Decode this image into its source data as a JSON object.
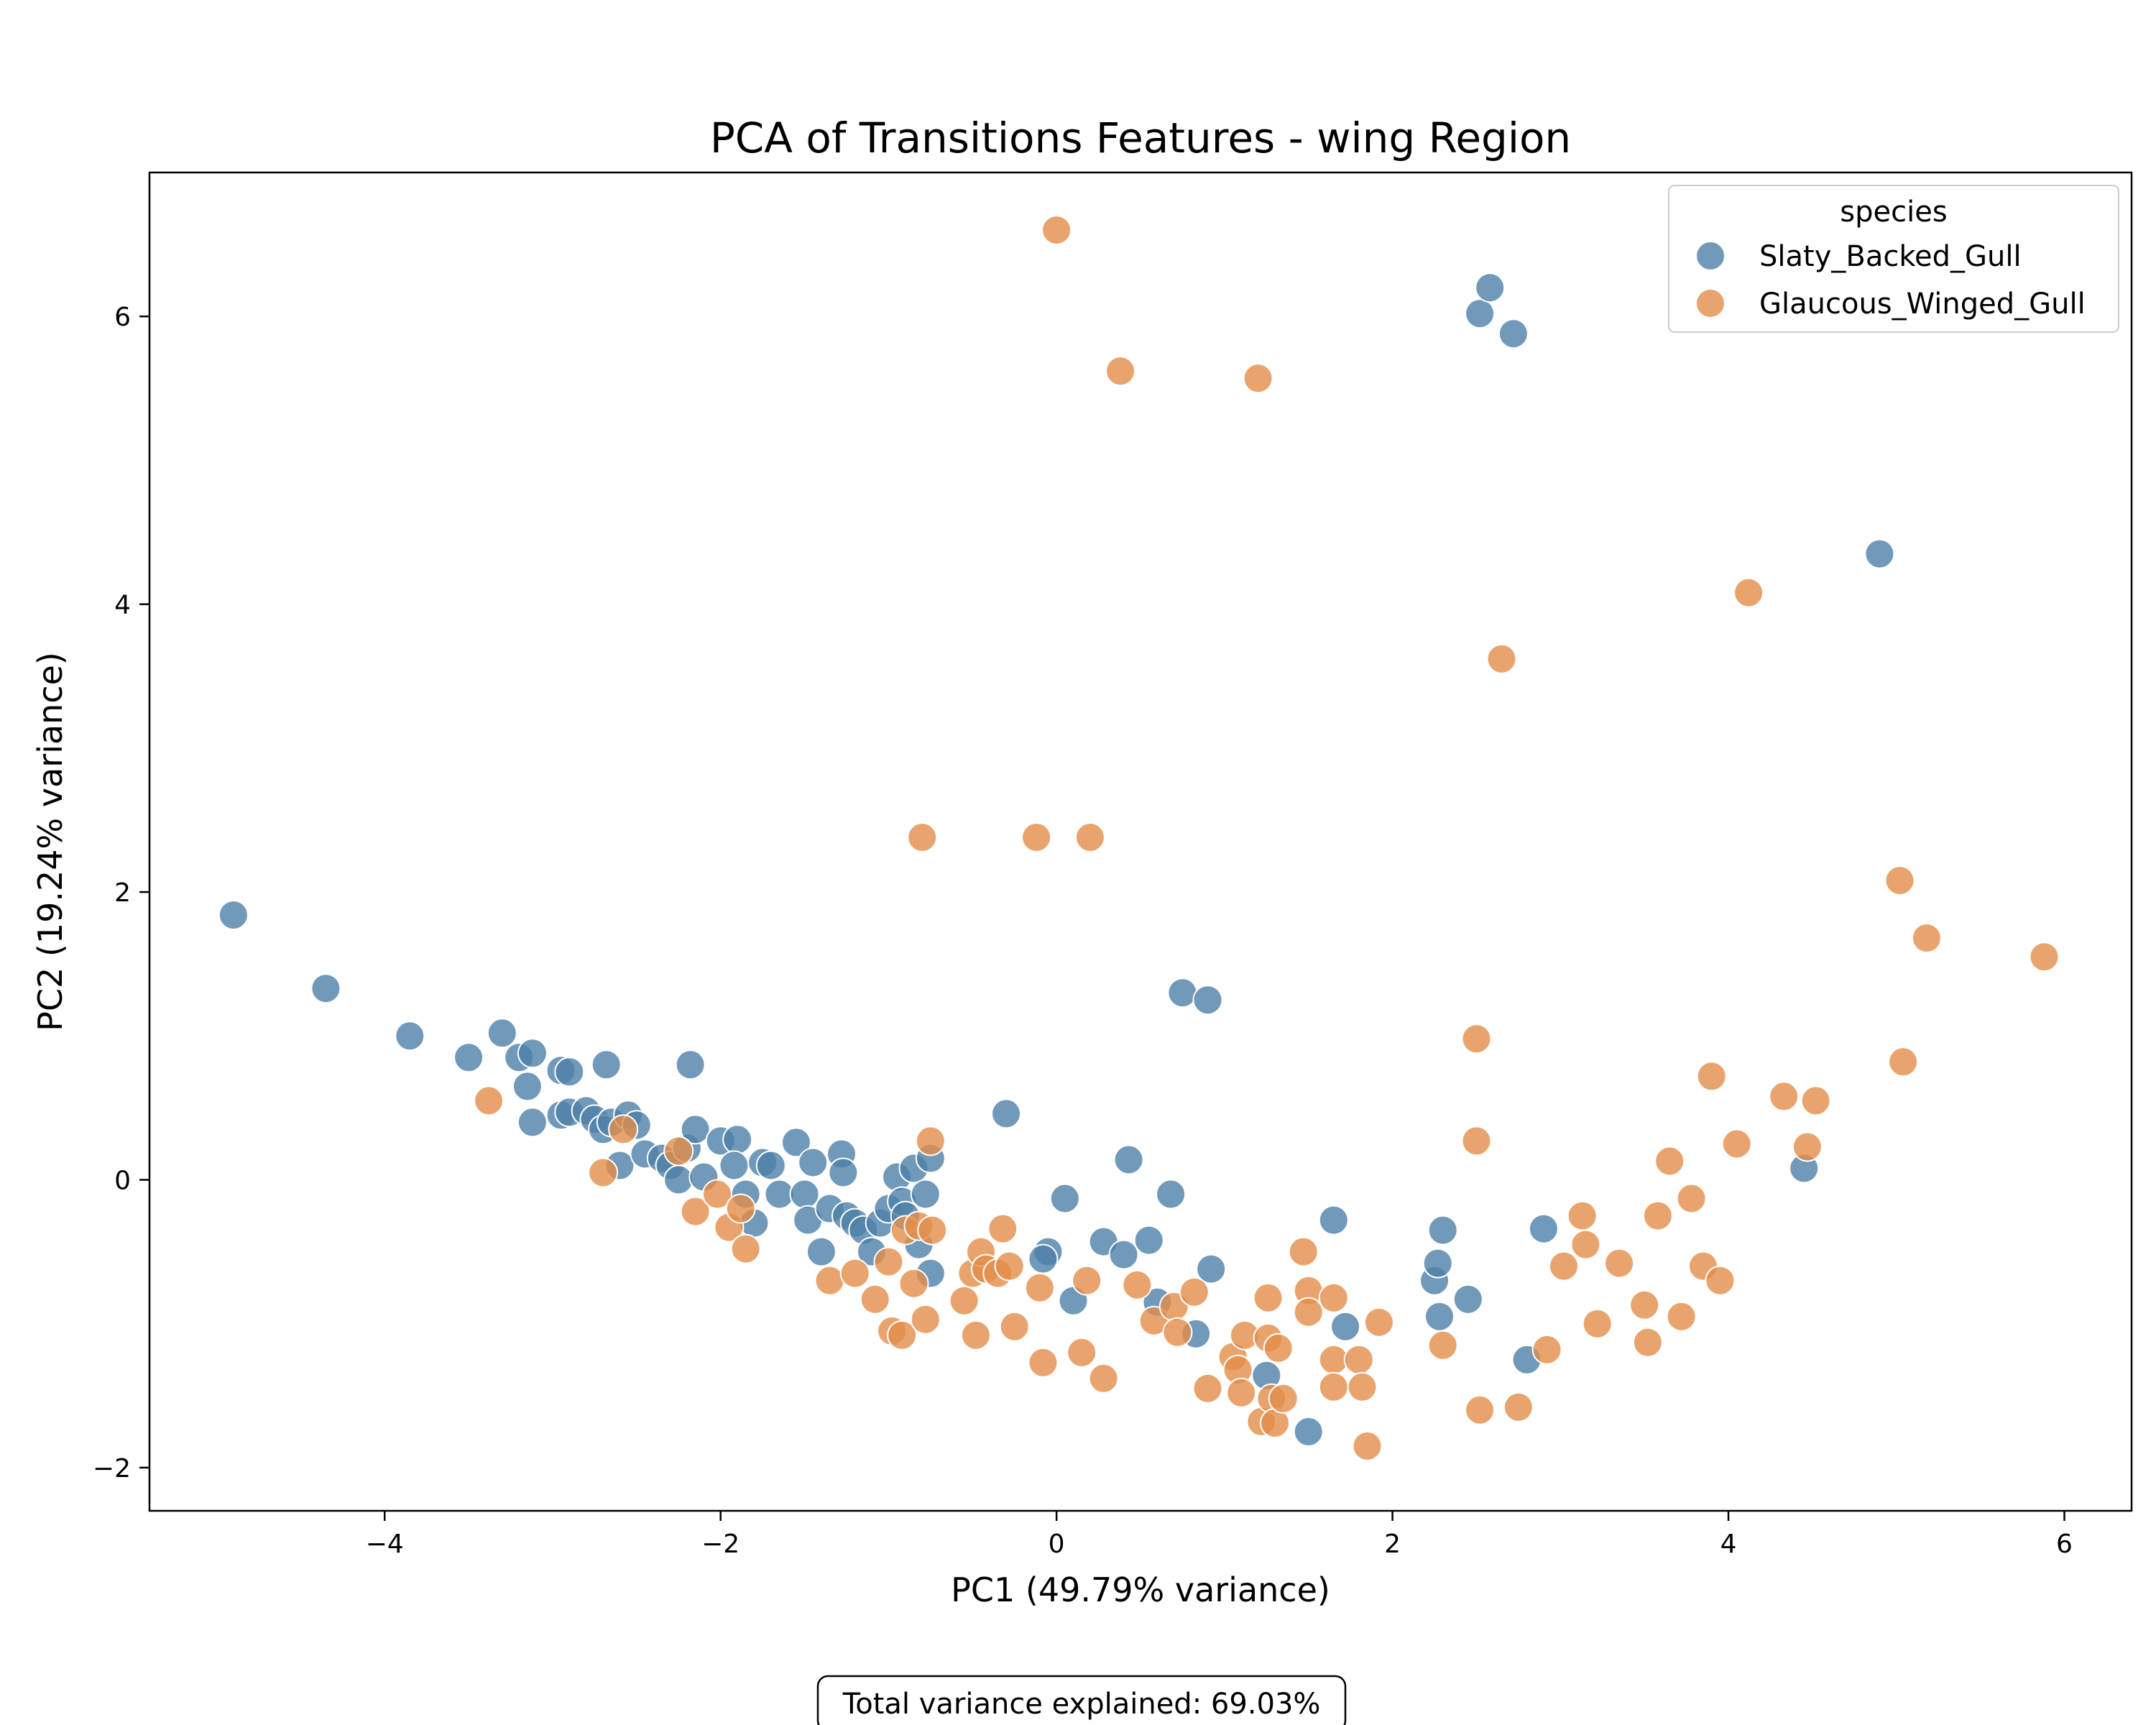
{
  "chart_data": {
    "type": "scatter",
    "title": "PCA of Transitions Features - wing Region",
    "xlabel": "PC1 (49.79% variance)",
    "ylabel": "PC2 (19.24% variance)",
    "xlim": [
      -5.4,
      6.4
    ],
    "ylim": [
      -2.3,
      7.0
    ],
    "xticks": [
      -4,
      -2,
      0,
      2,
      4,
      6
    ],
    "yticks": [
      -2,
      0,
      2,
      4,
      6
    ],
    "xtick_labels": [
      "−4",
      "−2",
      "0",
      "2",
      "4",
      "6"
    ],
    "ytick_labels": [
      "−2",
      "0",
      "2",
      "4",
      "6"
    ],
    "grid": false,
    "legend": {
      "title": "species",
      "placement": "top-right"
    },
    "footnote": "Total variance explained: 69.03%",
    "series": [
      {
        "name": "Slaty_Backed_Gull",
        "color": "#4e7fa8",
        "points": [
          [
            -4.9,
            1.84
          ],
          [
            -4.35,
            1.33
          ],
          [
            -3.85,
            1.0
          ],
          [
            -3.5,
            0.85
          ],
          [
            -3.3,
            1.02
          ],
          [
            -3.2,
            0.85
          ],
          [
            -3.12,
            0.88
          ],
          [
            -3.15,
            0.65
          ],
          [
            -3.12,
            0.4
          ],
          [
            -2.95,
            0.76
          ],
          [
            -2.9,
            0.75
          ],
          [
            -2.95,
            0.45
          ],
          [
            -2.9,
            0.47
          ],
          [
            -2.8,
            0.48
          ],
          [
            -2.75,
            0.42
          ],
          [
            -2.7,
            0.35
          ],
          [
            -2.65,
            0.4
          ],
          [
            -2.68,
            0.8
          ],
          [
            -2.6,
            0.1
          ],
          [
            -2.55,
            0.45
          ],
          [
            -2.5,
            0.38
          ],
          [
            -2.45,
            0.18
          ],
          [
            -2.35,
            0.15
          ],
          [
            -2.3,
            0.1
          ],
          [
            -2.25,
            0.0
          ],
          [
            -2.2,
            0.22
          ],
          [
            -2.18,
            0.8
          ],
          [
            -2.15,
            0.35
          ],
          [
            -2.1,
            0.02
          ],
          [
            -2.0,
            0.27
          ],
          [
            -1.9,
            0.28
          ],
          [
            -1.92,
            0.1
          ],
          [
            -1.85,
            -0.1
          ],
          [
            -1.8,
            -0.3
          ],
          [
            -1.75,
            0.12
          ],
          [
            -1.7,
            0.1
          ],
          [
            -1.65,
            -0.1
          ],
          [
            -1.55,
            0.26
          ],
          [
            -1.5,
            -0.1
          ],
          [
            -1.48,
            -0.28
          ],
          [
            -1.45,
            0.12
          ],
          [
            -1.4,
            -0.5
          ],
          [
            -1.35,
            -0.2
          ],
          [
            -1.28,
            0.18
          ],
          [
            -1.27,
            0.05
          ],
          [
            -1.25,
            -0.25
          ],
          [
            -1.2,
            -0.3
          ],
          [
            -1.15,
            -0.35
          ],
          [
            -1.1,
            -0.5
          ],
          [
            -1.05,
            -0.3
          ],
          [
            -1.0,
            -0.2
          ],
          [
            -0.95,
            0.02
          ],
          [
            -0.92,
            -0.15
          ],
          [
            -0.9,
            -0.25
          ],
          [
            -0.85,
            0.08
          ],
          [
            -0.82,
            -0.45
          ],
          [
            -0.78,
            -0.1
          ],
          [
            -0.75,
            0.15
          ],
          [
            -0.75,
            -0.65
          ],
          [
            -0.3,
            0.46
          ],
          [
            -0.05,
            -0.5
          ],
          [
            -0.08,
            -0.55
          ],
          [
            0.05,
            -0.13
          ],
          [
            0.1,
            -0.84
          ],
          [
            0.28,
            -0.43
          ],
          [
            0.4,
            -0.52
          ],
          [
            0.43,
            0.14
          ],
          [
            0.55,
            -0.42
          ],
          [
            0.6,
            -0.85
          ],
          [
            0.68,
            -0.1
          ],
          [
            0.75,
            1.3
          ],
          [
            0.83,
            -1.07
          ],
          [
            0.9,
            1.25
          ],
          [
            0.92,
            -0.62
          ],
          [
            1.25,
            -1.36
          ],
          [
            1.5,
            -1.75
          ],
          [
            1.65,
            -0.28
          ],
          [
            1.72,
            -1.02
          ],
          [
            2.25,
            -0.7
          ],
          [
            2.27,
            -0.58
          ],
          [
            2.28,
            -0.95
          ],
          [
            2.3,
            -0.35
          ],
          [
            2.45,
            -0.83
          ],
          [
            2.52,
            6.02
          ],
          [
            2.58,
            6.2
          ],
          [
            2.72,
            5.88
          ],
          [
            2.8,
            -1.25
          ],
          [
            2.9,
            -0.34
          ],
          [
            4.45,
            0.08
          ],
          [
            4.9,
            4.35
          ]
        ]
      },
      {
        "name": "Glaucous_Winged_Gull",
        "color": "#e38d4a",
        "points": [
          [
            -3.38,
            0.55
          ],
          [
            -2.7,
            0.05
          ],
          [
            -2.58,
            0.35
          ],
          [
            -2.25,
            0.2
          ],
          [
            -2.15,
            -0.22
          ],
          [
            -2.02,
            -0.1
          ],
          [
            -1.95,
            -0.33
          ],
          [
            -1.88,
            -0.2
          ],
          [
            -1.85,
            -0.48
          ],
          [
            -1.35,
            -0.7
          ],
          [
            -1.2,
            -0.65
          ],
          [
            -1.08,
            -0.83
          ],
          [
            -1.0,
            -0.57
          ],
          [
            -0.98,
            -1.05
          ],
          [
            -0.92,
            -1.08
          ],
          [
            -0.9,
            -0.35
          ],
          [
            -0.85,
            -0.72
          ],
          [
            -0.82,
            -0.32
          ],
          [
            -0.8,
            2.38
          ],
          [
            -0.78,
            -0.97
          ],
          [
            -0.75,
            0.27
          ],
          [
            -0.74,
            -0.35
          ],
          [
            -0.55,
            -0.84
          ],
          [
            -0.5,
            -0.65
          ],
          [
            -0.48,
            -1.08
          ],
          [
            -0.45,
            -0.5
          ],
          [
            -0.42,
            -0.62
          ],
          [
            -0.35,
            -0.65
          ],
          [
            -0.32,
            -0.34
          ],
          [
            -0.28,
            -0.6
          ],
          [
            -0.25,
            -1.02
          ],
          [
            -0.12,
            2.38
          ],
          [
            -0.1,
            -0.75
          ],
          [
            -0.08,
            -1.27
          ],
          [
            0.0,
            6.6
          ],
          [
            0.15,
            -1.2
          ],
          [
            0.18,
            -0.7
          ],
          [
            0.2,
            2.38
          ],
          [
            0.28,
            -1.38
          ],
          [
            0.38,
            5.62
          ],
          [
            0.48,
            -0.73
          ],
          [
            0.58,
            -0.98
          ],
          [
            0.7,
            -0.88
          ],
          [
            0.72,
            -1.06
          ],
          [
            0.82,
            -0.78
          ],
          [
            0.9,
            -1.45
          ],
          [
            1.05,
            -1.23
          ],
          [
            1.08,
            -1.32
          ],
          [
            1.1,
            -1.48
          ],
          [
            1.12,
            -1.08
          ],
          [
            1.2,
            5.57
          ],
          [
            1.22,
            -1.68
          ],
          [
            1.26,
            -1.1
          ],
          [
            1.26,
            -0.82
          ],
          [
            1.28,
            -1.52
          ],
          [
            1.3,
            -1.69
          ],
          [
            1.32,
            -1.17
          ],
          [
            1.35,
            -1.52
          ],
          [
            1.47,
            -0.5
          ],
          [
            1.5,
            -0.77
          ],
          [
            1.5,
            -0.92
          ],
          [
            1.65,
            -0.82
          ],
          [
            1.65,
            -1.25
          ],
          [
            1.65,
            -1.44
          ],
          [
            1.8,
            -1.25
          ],
          [
            1.82,
            -1.44
          ],
          [
            1.85,
            -1.85
          ],
          [
            1.92,
            -0.99
          ],
          [
            2.3,
            -1.15
          ],
          [
            2.5,
            0.98
          ],
          [
            2.5,
            0.27
          ],
          [
            2.52,
            -1.6
          ],
          [
            2.65,
            3.62
          ],
          [
            2.75,
            -1.58
          ],
          [
            2.92,
            -1.18
          ],
          [
            3.02,
            -0.6
          ],
          [
            3.13,
            -0.25
          ],
          [
            3.15,
            -0.45
          ],
          [
            3.22,
            -1.0
          ],
          [
            3.35,
            -0.58
          ],
          [
            3.5,
            -0.87
          ],
          [
            3.52,
            -1.13
          ],
          [
            3.58,
            -0.25
          ],
          [
            3.65,
            0.13
          ],
          [
            3.72,
            -0.95
          ],
          [
            3.78,
            -0.13
          ],
          [
            3.85,
            -0.6
          ],
          [
            3.9,
            0.72
          ],
          [
            3.95,
            -0.7
          ],
          [
            4.05,
            0.25
          ],
          [
            4.12,
            4.08
          ],
          [
            4.33,
            0.58
          ],
          [
            4.47,
            0.23
          ],
          [
            4.52,
            0.55
          ],
          [
            5.02,
            2.08
          ],
          [
            5.04,
            0.82
          ],
          [
            5.18,
            1.68
          ],
          [
            5.88,
            1.55
          ]
        ]
      }
    ]
  }
}
